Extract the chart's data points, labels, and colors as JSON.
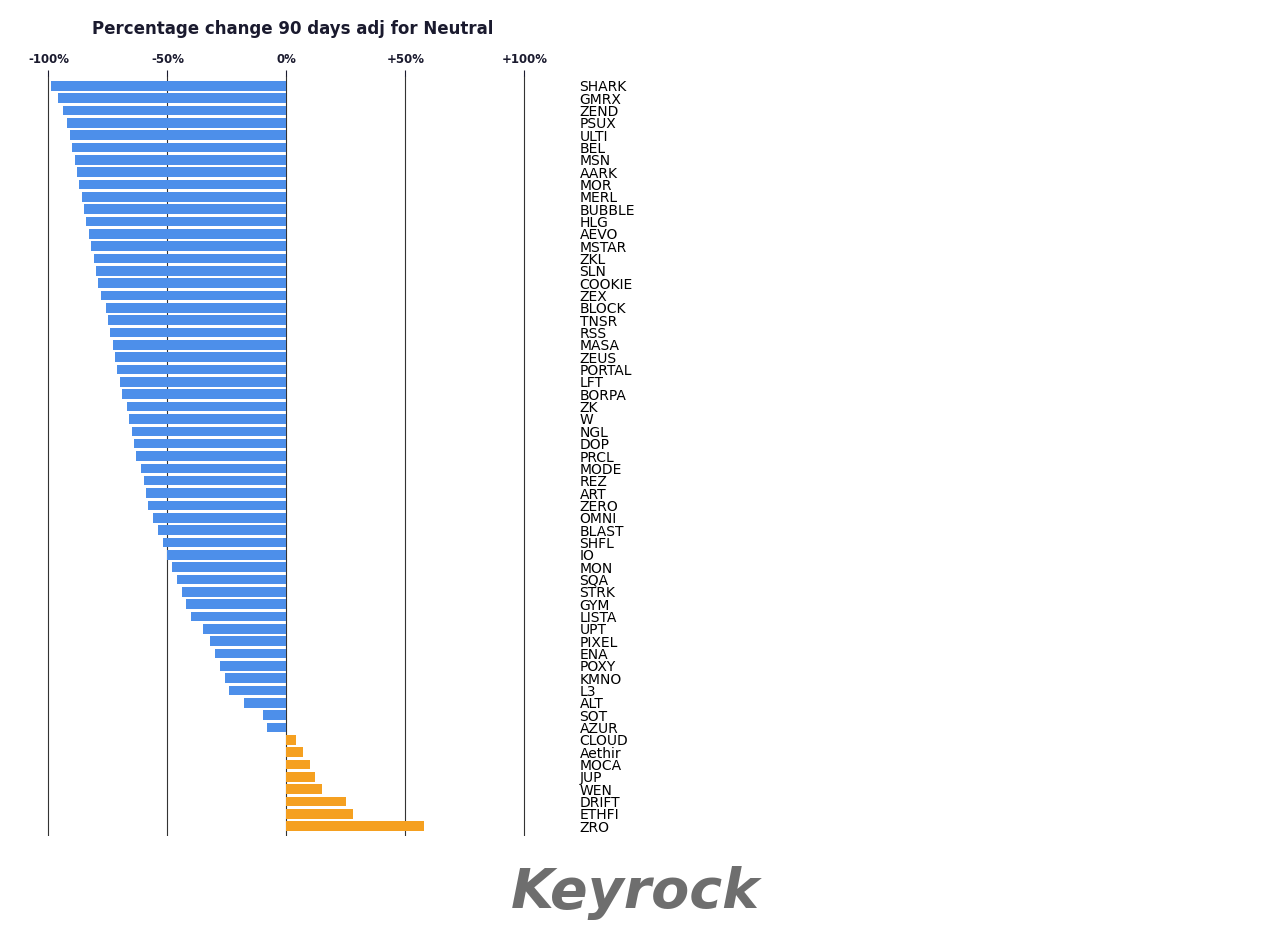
{
  "title": "Percentage change 90 days adj for Neutral",
  "background_color": "#ffffff",
  "title_color": "#1a1a2e",
  "bar_color_negative": "#4d8fea",
  "bar_color_positive": "#f5a020",
  "tick_label_color": "#1a1a2e",
  "grid_color": "#333333",
  "watermark": "Keyrock",
  "categories": [
    "SHARK",
    "GMRX",
    "ZEND",
    "PSUX",
    "ULTI",
    "BEL",
    "MSN",
    "AARK",
    "MOR",
    "MERL",
    "BUBBLE",
    "HLG",
    "AEVO",
    "MSTAR",
    "ZKL",
    "SLN",
    "COOKIE",
    "ZEX",
    "BLOCK",
    "TNSR",
    "RSS",
    "MASA",
    "ZEUS",
    "PORTAL",
    "LFT",
    "BORPA",
    "ZK",
    "W",
    "NGL",
    "DOP",
    "PRCL",
    "MODE",
    "REZ",
    "ART",
    "ZERO",
    "OMNI",
    "BLAST",
    "SHFL",
    "IO",
    "MON",
    "SQA",
    "STRK",
    "GYM",
    "LISTA",
    "UPT",
    "PIXEL",
    "ENA",
    "POXY",
    "KMNO",
    "L3",
    "ALT",
    "SOT",
    "AZUR",
    "CLOUD",
    "Aethir",
    "MOCA",
    "JUP",
    "WEN",
    "DRIFT",
    "ETHFI",
    "ZRO"
  ],
  "values": [
    -99,
    -96,
    -94,
    -92,
    -91,
    -90,
    -89,
    -88,
    -87,
    -86,
    -85,
    -84,
    -83,
    -82,
    -81,
    -80,
    -79,
    -78,
    -76,
    -75,
    -74,
    -73,
    -72,
    -71,
    -70,
    -69,
    -67,
    -66,
    -65,
    -64,
    -63,
    -61,
    -60,
    -59,
    -58,
    -56,
    -54,
    -52,
    -50,
    -48,
    -46,
    -44,
    -42,
    -40,
    -35,
    -32,
    -30,
    -28,
    -26,
    -24,
    -18,
    -10,
    -8,
    4,
    7,
    10,
    12,
    15,
    25,
    28,
    58
  ],
  "xlim": [
    -115,
    120
  ],
  "xticks": [
    -100,
    -50,
    0,
    50,
    100
  ],
  "xticklabels": [
    "-100%",
    "-50%",
    "0%",
    "+50%",
    "+100%"
  ],
  "title_fontsize": 12,
  "label_fontsize": 6.5,
  "tick_fontsize": 8.5,
  "bar_height": 0.78
}
